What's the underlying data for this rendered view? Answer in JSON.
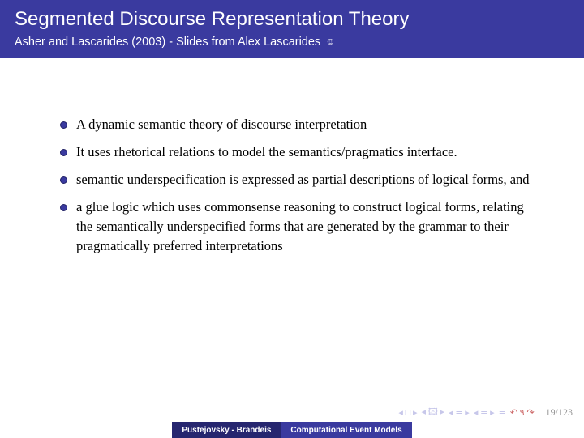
{
  "header": {
    "title": "Segmented Discourse Representation Theory",
    "subtitle": "Asher and Lascarides (2003) - Slides from Alex Lascarides ",
    "smiley": "☺"
  },
  "bullets": [
    "A dynamic semantic theory of discourse interpretation",
    "It uses rhetorical relations to model the semantics/pragmatics interface.",
    "semantic underspecification is expressed as partial descriptions of logical forms, and",
    "a glue logic which uses commonsense reasoning to construct logical forms, relating the semantically underspecified forms that are generated by the grammar to their pragmatically preferred interpretations"
  ],
  "footer": {
    "author": "Pustejovsky - Brandeis",
    "topic": "Computational Event Models",
    "page": "19/123"
  },
  "colors": {
    "header_bg": "#3a3a9f",
    "header_fg": "#ffffff",
    "bullet_color": "#3a3a9f",
    "body_bg": "#ffffff",
    "nav_inactive": "#c7c7ea",
    "nav_active": "#cc6666",
    "page_num": "#9a9a9a"
  }
}
